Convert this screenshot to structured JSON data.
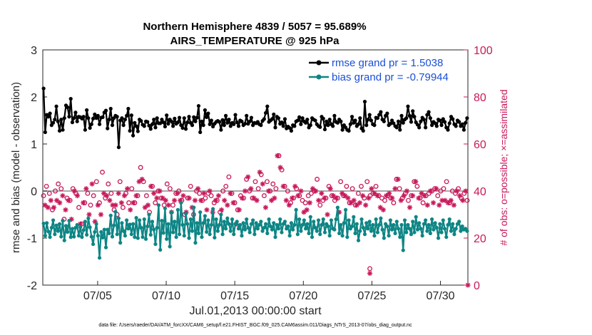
{
  "chart_data": {
    "type": "line",
    "title": "Northern Hemisphere 4839 / 5057 = 95.689%",
    "subtitle": "AIRS_TEMPERATURE @ 925 hPa",
    "xlabel": "Jul.01,2013 00:00:00 start",
    "ylabel": "rmse and bias (model - observation)",
    "y2label": "# of obs: o=possible; ×=assimilated",
    "xlim": [
      1,
      32
    ],
    "ylim": [
      -2,
      3
    ],
    "y2lim": [
      0,
      100
    ],
    "xticks": [
      5,
      10,
      15,
      20,
      25,
      30
    ],
    "xtick_labels": [
      "07/05",
      "07/10",
      "07/15",
      "07/20",
      "07/25",
      "07/30"
    ],
    "yticks": [
      -2,
      -1,
      0,
      1,
      2,
      3
    ],
    "ytick_labels": [
      "-2",
      "-1",
      "0",
      "1",
      "2",
      "3"
    ],
    "y2ticks": [
      0,
      20,
      40,
      60,
      80,
      100
    ],
    "y2tick_labels": [
      "0",
      "20",
      "40",
      "60",
      "80",
      "100"
    ],
    "legend_location": "top-right",
    "colors": {
      "rmse": "#000000",
      "bias": "#0e8585",
      "obs": "#c8195a",
      "zero_line": "#aaaaaa",
      "legend_text": "#1a4fd6"
    },
    "series": [
      {
        "name": "rmse grand pr = 1.5038",
        "color": "#000000",
        "values": [
          2.18,
          1.25,
          1.62,
          1.58,
          1.65,
          1.4,
          1.45,
          1.52,
          1.8,
          1.48,
          1.28,
          1.52,
          1.3,
          1.55,
          1.82,
          1.78,
          1.58,
          1.96,
          1.46,
          1.55,
          1.67,
          1.48,
          1.58,
          1.57,
          1.54,
          1.58,
          1.3,
          1.72,
          1.55,
          1.34,
          1.42,
          1.54,
          1.63,
          1.55,
          1.6,
          1.42,
          1.56,
          1.57,
          1.67,
          1.71,
          1.33,
          1.52,
          1.75,
          1.4,
          1.55,
          1.6,
          1.58,
          0.93,
          1.5,
          1.55,
          1.4,
          1.52,
          1.6,
          1.75,
          1.28,
          1.61,
          1.18,
          1.45,
          1.38,
          1.27,
          1.52,
          1.49,
          1.41,
          1.38,
          1.48,
          1.47,
          1.39,
          1.32,
          1.42,
          1.52,
          1.35,
          1.55,
          1.44,
          1.44,
          1.52,
          1.46,
          1.37,
          1.61,
          1.43,
          1.52,
          1.48,
          1.38,
          1.54,
          1.43,
          1.46,
          1.56,
          1.4,
          1.34,
          1.55,
          1.32,
          1.46,
          1.58,
          1.45,
          1.4,
          1.57,
          1.48,
          1.56,
          1.81,
          1.25,
          1.48,
          1.4,
          1.72,
          1.57,
          1.65,
          1.42,
          1.5,
          1.37,
          1.43,
          1.47,
          1.49,
          1.47,
          1.3,
          1.51,
          1.4,
          1.6,
          1.45,
          1.52,
          1.38,
          1.45,
          1.42,
          1.62,
          1.46,
          1.38,
          1.5,
          1.48,
          1.4,
          1.43,
          1.6,
          1.43,
          1.48,
          1.56,
          1.4,
          1.45,
          1.44,
          1.47,
          1.42,
          1.4,
          1.49,
          1.53,
          1.66,
          1.8,
          1.47,
          1.5,
          1.53,
          1.63,
          1.35,
          1.58,
          1.55,
          1.43,
          1.46,
          1.38,
          1.53,
          1.33,
          1.37,
          1.34,
          1.28,
          1.4,
          1.38,
          1.48,
          1.5,
          1.57,
          1.42,
          1.55,
          1.48,
          1.45,
          1.52,
          1.35,
          1.4,
          1.55,
          1.52,
          1.5,
          1.42,
          1.38,
          1.36,
          1.58,
          1.54,
          1.31,
          1.48,
          1.4,
          1.52,
          1.42,
          1.38,
          1.6,
          1.47,
          1.45,
          1.52,
          1.48,
          1.3,
          1.4,
          1.35,
          1.3,
          1.28,
          1.42,
          1.58,
          1.45,
          1.5,
          1.38,
          1.42,
          1.55,
          1.33,
          1.28,
          1.9,
          1.4,
          1.52,
          1.62,
          1.5,
          1.42,
          1.4,
          1.56,
          1.55,
          1.62,
          1.68,
          1.52,
          1.48,
          1.6,
          1.65,
          1.4,
          1.43,
          1.5,
          1.44,
          1.38,
          1.35,
          1.48,
          1.3,
          1.6,
          1.45,
          1.52,
          1.55,
          1.8,
          1.6,
          1.47,
          1.7,
          1.58,
          1.46,
          1.41,
          1.35,
          1.48,
          1.56,
          1.52,
          1.35,
          1.62,
          1.68,
          1.55,
          1.4,
          1.47,
          1.44,
          1.38,
          1.52,
          1.5,
          1.4,
          1.53,
          1.47,
          1.35,
          1.3,
          1.44,
          1.58,
          1.53,
          1.42,
          1.38,
          1.5,
          1.47,
          1.38,
          1.42,
          1.3,
          1.45,
          1.55
        ]
      },
      {
        "name": "bias grand pr = -0.79944",
        "color": "#0e8585",
        "values": [
          -0.69,
          -0.95,
          -0.68,
          -0.86,
          -0.98,
          -0.78,
          -0.62,
          -0.92,
          -0.73,
          -0.85,
          -0.7,
          -0.97,
          -0.63,
          -1.05,
          -0.74,
          -0.87,
          -0.63,
          -0.98,
          -0.8,
          -0.97,
          -0.78,
          -0.72,
          -0.95,
          -0.77,
          -0.98,
          -0.83,
          -0.65,
          -0.93,
          -0.58,
          -0.77,
          -0.97,
          -1.13,
          -0.87,
          -0.7,
          -0.95,
          -1.42,
          -0.87,
          -0.99,
          -0.82,
          -1.2,
          -0.82,
          -0.9,
          -0.52,
          -0.97,
          -0.73,
          -0.44,
          -0.92,
          -0.58,
          -1.1,
          -0.68,
          -0.85,
          -0.95,
          -0.62,
          -0.8,
          -0.71,
          -0.92,
          -0.7,
          -0.98,
          -0.57,
          -1.0,
          -0.62,
          -0.78,
          -0.98,
          -0.6,
          -1.02,
          -0.75,
          -0.5,
          -0.93,
          -0.65,
          -0.82,
          -1.13,
          -0.78,
          -0.3,
          -1.25,
          -0.63,
          -0.89,
          -0.37,
          -1.02,
          -0.7,
          -1.18,
          -0.45,
          -0.88,
          -0.65,
          -0.98,
          -0.4,
          -0.92,
          -0.25,
          -0.72,
          -0.95,
          -0.48,
          -0.7,
          -1.0,
          -0.6,
          -0.85,
          -0.35,
          -1.1,
          -0.68,
          -0.9,
          -0.45,
          -0.98,
          -0.68,
          -0.53,
          -0.87,
          -0.62,
          -0.92,
          -0.72,
          -0.38,
          -0.99,
          -0.6,
          -0.85,
          -0.72,
          -0.5,
          -0.92,
          -0.65,
          -0.8,
          -0.58,
          -0.7,
          -0.85,
          -0.6,
          -0.92,
          -0.7,
          -0.65,
          -0.8,
          -0.72,
          -0.95,
          -0.68,
          -0.82,
          -0.6,
          -0.78,
          -0.88,
          -0.7,
          -0.62,
          -0.92,
          -0.68,
          -0.8,
          -0.72,
          -0.65,
          -0.85,
          -0.78,
          -0.7,
          -0.9,
          -0.6,
          -0.75,
          -0.82,
          -0.68,
          -0.98,
          -0.72,
          -0.8,
          -0.6,
          -0.88,
          -0.7,
          -0.65,
          -0.8,
          -0.75,
          -0.95,
          -0.68,
          -0.82,
          -0.72,
          -0.4,
          -0.92,
          -0.6,
          -0.85,
          -0.72,
          -0.62,
          -0.8,
          -0.7,
          -0.9,
          -0.55,
          -0.98,
          -0.65,
          -0.78,
          -0.85,
          -0.62,
          -0.92,
          -0.72,
          -0.6,
          -0.88,
          -0.7,
          -0.75,
          -0.95,
          -0.62,
          -0.8,
          -0.82,
          -0.6,
          -0.35,
          -0.9,
          -0.72,
          -0.95,
          -0.68,
          -0.4,
          -0.98,
          -0.62,
          -0.8,
          -0.75,
          -0.55,
          -0.9,
          -0.7,
          -1.05,
          -0.85,
          -0.6,
          -0.78,
          -0.92,
          -0.68,
          -0.8,
          -0.65,
          -0.85,
          -0.72,
          -0.95,
          -0.6,
          -0.88,
          -0.72,
          -0.58,
          -0.82,
          -1.0,
          -0.7,
          -0.75,
          -0.95,
          -0.62,
          -0.82,
          -0.72,
          -0.9,
          -0.65,
          -0.8,
          -0.98,
          -0.72,
          -1.26,
          -0.62,
          -0.88,
          -0.72,
          -0.8,
          -0.92,
          -0.65,
          -0.88,
          -0.55,
          -0.82,
          -0.68,
          -0.8,
          -0.95,
          -0.7,
          -0.62,
          -0.85,
          -0.72,
          -0.9,
          -0.6,
          -0.82,
          -0.68,
          -0.78,
          -1.0,
          -0.7,
          -0.88,
          -0.62,
          -0.8,
          -0.98,
          -0.72,
          -0.6,
          -0.85,
          -0.7,
          -0.92,
          -0.8,
          -0.7,
          -0.65,
          -0.85,
          -0.75,
          -0.82,
          -0.8,
          -0.85
        ]
      }
    ],
    "obs_possible": [
      38,
      36,
      42,
      35,
      39,
      38,
      32,
      35,
      40,
      38,
      43,
      37,
      41,
      40,
      28,
      34,
      37,
      38,
      36,
      30,
      41,
      42,
      39,
      40,
      33,
      28,
      26,
      37,
      35,
      43,
      39,
      32,
      34,
      45,
      38,
      29,
      44,
      36,
      35,
      32,
      48,
      41,
      37,
      40,
      43,
      38,
      39,
      36,
      32,
      36,
      30,
      41,
      44,
      37,
      33,
      40,
      39,
      43,
      35,
      34,
      41,
      37,
      35,
      40,
      38,
      46,
      50,
      47,
      44,
      35,
      38,
      36,
      31,
      44,
      42,
      41,
      35,
      39,
      40,
      42,
      37,
      39,
      34,
      38,
      43,
      36,
      41,
      33,
      34,
      38,
      39,
      41,
      40,
      38,
      36,
      40,
      30,
      33,
      37,
      39,
      42,
      35,
      30,
      38,
      40,
      43,
      39,
      38,
      36,
      41,
      37,
      34,
      39,
      42,
      38,
      33,
      35,
      38,
      36,
      40,
      31,
      34,
      40,
      38,
      42,
      36,
      46,
      41,
      39,
      37,
      35,
      28,
      32,
      34,
      38,
      39,
      37,
      42,
      45,
      48,
      40,
      43,
      37,
      39,
      44,
      38,
      41,
      50,
      47,
      45,
      38,
      35,
      44,
      42,
      40,
      38,
      43,
      39,
      41,
      57,
      55,
      52,
      49,
      44,
      42,
      38,
      40,
      36,
      35,
      39,
      37,
      44,
      41,
      40,
      38,
      42,
      36,
      33,
      35,
      34,
      38,
      37,
      39,
      43,
      40,
      42,
      45,
      38,
      34,
      41,
      36,
      39,
      37,
      32,
      42,
      43,
      38,
      40,
      36,
      39,
      37,
      33,
      44,
      41,
      38,
      40,
      42,
      39,
      35,
      37,
      41,
      38,
      34,
      36,
      39,
      37,
      42,
      40,
      37,
      36,
      44,
      39,
      38,
      43,
      39,
      41,
      42,
      40,
      38,
      35,
      37,
      34,
      36,
      40,
      38,
      41,
      37,
      39,
      35,
      43,
      45,
      47,
      41,
      38,
      37,
      40,
      39,
      42,
      36,
      35,
      38,
      40,
      44,
      46,
      42,
      39,
      37,
      41,
      35,
      40,
      38,
      36,
      39,
      42,
      40,
      37,
      41,
      43,
      38,
      36,
      40,
      38,
      41,
      38,
      44,
      37,
      35,
      38,
      40,
      36,
      39,
      42,
      41,
      40,
      37,
      38,
      39,
      42,
      36
    ],
    "obs_assimilated": [
      36,
      34,
      40,
      33,
      37,
      36,
      30,
      33,
      38,
      36,
      41,
      35,
      39,
      38,
      26,
      32,
      35,
      36,
      34,
      28,
      39,
      40,
      37,
      38,
      31,
      26,
      24,
      35,
      33,
      41,
      37,
      30,
      32,
      43,
      36,
      27,
      42,
      34,
      33,
      30,
      46,
      39,
      35,
      38,
      41,
      36,
      37,
      34,
      30,
      34,
      28,
      39,
      42,
      35,
      31,
      38,
      37,
      41,
      33,
      32,
      39,
      35,
      33,
      38,
      36,
      44,
      48,
      45,
      42,
      33,
      36,
      34,
      29,
      42,
      40,
      39,
      33,
      37,
      38,
      40,
      35,
      37,
      32,
      36,
      41,
      34,
      39,
      31,
      32,
      36,
      37,
      39,
      38,
      36,
      34,
      38,
      28,
      31,
      35,
      37,
      40,
      33,
      28,
      36,
      38,
      41,
      37,
      36,
      34,
      39,
      35,
      32,
      37,
      40,
      36,
      31,
      33,
      36,
      34,
      38,
      29,
      32,
      38,
      36,
      40,
      34,
      44,
      39,
      37,
      35,
      33,
      26,
      30,
      32,
      36,
      37,
      35,
      40,
      43,
      46,
      38,
      41,
      35,
      37,
      42,
      36,
      39,
      48,
      45,
      43,
      36,
      33,
      42,
      40,
      38,
      36,
      41,
      37,
      39,
      55,
      53,
      50,
      47,
      42,
      40,
      36,
      38,
      34,
      33,
      37,
      35,
      42,
      39,
      38,
      36,
      40,
      34,
      31,
      33,
      32,
      36,
      35,
      37,
      41,
      38,
      40,
      43,
      36,
      32,
      39,
      34,
      37,
      35,
      30,
      40,
      41,
      36,
      38,
      34,
      37,
      35,
      31,
      42,
      39,
      36,
      38,
      40,
      37,
      33,
      35,
      39,
      36,
      32,
      34,
      37,
      35,
      40,
      38,
      35,
      34,
      42,
      37,
      36,
      41,
      37,
      39,
      40,
      38,
      36,
      33,
      35,
      32,
      34,
      38,
      36,
      39,
      35,
      37,
      33,
      41,
      43,
      45,
      39,
      36,
      35,
      38,
      37,
      40,
      34,
      33,
      36,
      38,
      42,
      44,
      40,
      37,
      35,
      39,
      33,
      38,
      36,
      34,
      37,
      40,
      38,
      35,
      39,
      41,
      36,
      34,
      38,
      36,
      39,
      36,
      42,
      35,
      33,
      36,
      38,
      34,
      37,
      40,
      39,
      38,
      35,
      36,
      37,
      40,
      34
    ],
    "obs_outlier_possible": [
      {
        "x": 24.85,
        "y": 7
      }
    ],
    "obs_outlier_assimilated": [
      {
        "x": 24.85,
        "y": 5
      },
      {
        "x": 32.0,
        "y": 0
      }
    ]
  },
  "footer": "data file: /Users/raeder/DAI/ATM_forcXX/CAM6_setup/f.e21.FHIST_BGC.f09_025.CAM6assim.011/Diags_NTrS_2013-07/obs_diag_output.nc"
}
